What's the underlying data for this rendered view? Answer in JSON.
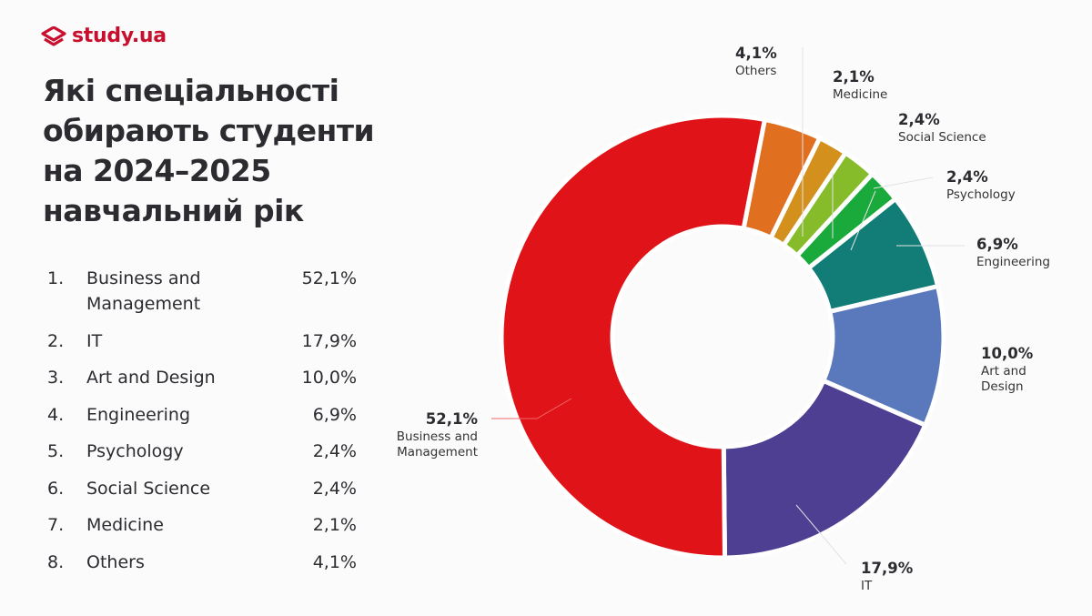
{
  "brand": {
    "name": "study.ua",
    "color": "#c8102e"
  },
  "title": "Які спеціальності обирають студенти на 2024–2025 навчальний рік",
  "list": [
    {
      "rank": "1.",
      "name": "Business and Management",
      "value": "52,1%"
    },
    {
      "rank": "2.",
      "name": "IT",
      "value": "17,9%"
    },
    {
      "rank": "3.",
      "name": "Art and Design",
      "value": "10,0%"
    },
    {
      "rank": "4.",
      "name": "Engineering",
      "value": "6,9%"
    },
    {
      "rank": "5.",
      "name": "Psychology",
      "value": "2,4%"
    },
    {
      "rank": "6.",
      "name": "Social Science",
      "value": "2,4%"
    },
    {
      "rank": "7.",
      "name": "Medicine",
      "value": "2,1%"
    },
    {
      "rank": "8.",
      "name": "Others",
      "value": "4,1%"
    }
  ],
  "chart_data": {
    "type": "pie",
    "variant": "donut",
    "title": "Які спеціальності обирають студенти на 2024–2025 навчальний рік",
    "unit": "%",
    "slices": [
      {
        "label": "Others",
        "value": 4.1,
        "display": "4,1%",
        "color": "#e07020"
      },
      {
        "label": "Medicine",
        "value": 2.1,
        "display": "2,1%",
        "color": "#d4901c"
      },
      {
        "label": "Social Science",
        "value": 2.4,
        "display": "2,4%",
        "color": "#86bc2a"
      },
      {
        "label": "Psychology",
        "value": 2.4,
        "display": "2,4%",
        "color": "#1aaa3c"
      },
      {
        "label": "Engineering",
        "value": 6.9,
        "display": "6,9%",
        "color": "#117d76"
      },
      {
        "label": "Art and Design",
        "value": 10.0,
        "display": "10,0%",
        "color": "#5a78bc"
      },
      {
        "label": "IT",
        "value": 17.9,
        "display": "17,9%",
        "color": "#4e3f92"
      },
      {
        "label": "Business and Management",
        "value": 52.1,
        "display": "52,1%",
        "color": "#e01318"
      }
    ]
  }
}
